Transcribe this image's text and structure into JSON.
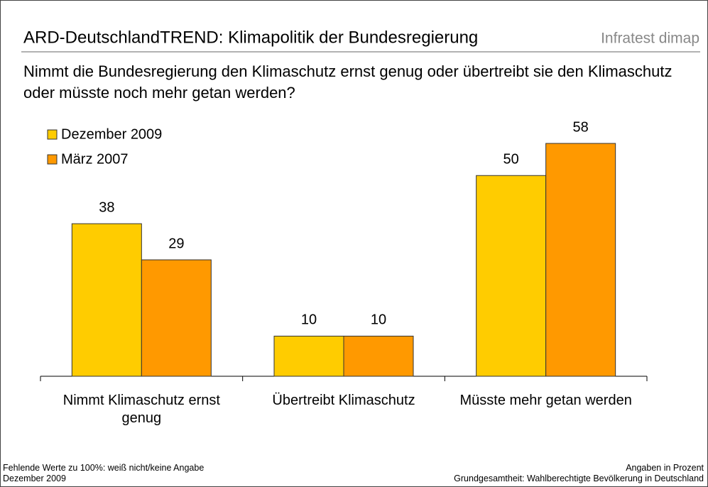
{
  "chart_data": {
    "type": "bar",
    "title": "ARD-DeutschlandTREND: Klimapolitik der Bundesregierung",
    "brand": "Infratest dimap",
    "subtitle": "Nimmt die Bundesregierung den Klimaschutz ernst genug oder übertreibt sie den Klimaschutz oder müsste noch mehr getan werden?",
    "categories": [
      "Nimmt Klimaschutz ernst genug",
      "Übertreibt Klimaschutz",
      "Müsste mehr getan werden"
    ],
    "series": [
      {
        "name": "Dezember 2009",
        "color": "#FFCC00",
        "values": [
          38,
          10,
          50
        ]
      },
      {
        "name": "März 2007",
        "color": "#FF9900",
        "values": [
          29,
          10,
          58
        ]
      }
    ],
    "footnotes_left": [
      "Fehlende Werte zu 100%: weiß nicht/keine Angabe",
      "Dezember 2009"
    ],
    "footnotes_right": [
      "Angaben in Prozent",
      "Grundgesamtheit: Wahlberechtigte Bevölkerung in Deutschland"
    ]
  }
}
